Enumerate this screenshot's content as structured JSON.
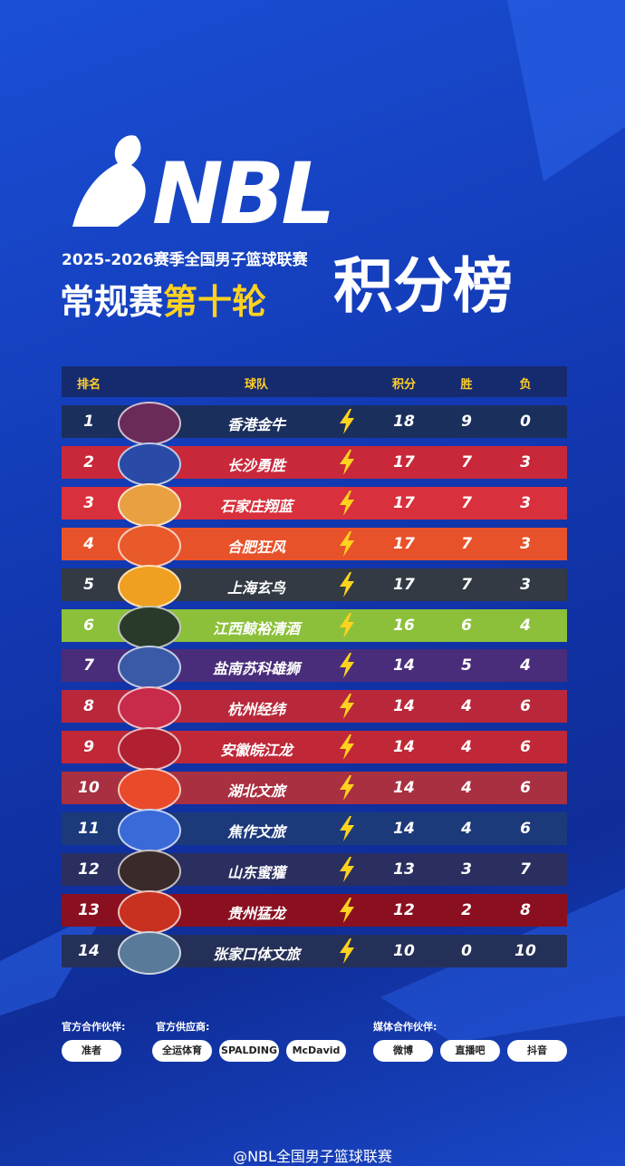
{
  "header": {
    "logo": "NBL",
    "season": "2025-2026赛季全国男子篮球联赛",
    "stage": "常规赛",
    "round": "第十轮",
    "title": "积分榜"
  },
  "table": {
    "columns": [
      "排名",
      "球队",
      "积分",
      "胜",
      "负"
    ],
    "rows": [
      [
        1,
        "香港金牛",
        18,
        9,
        0
      ],
      [
        2,
        "长沙勇胜",
        17,
        7,
        3
      ],
      [
        3,
        "石家庄翔蓝",
        17,
        7,
        3
      ],
      [
        4,
        "合肥狂风",
        17,
        7,
        3
      ],
      [
        5,
        "上海玄鸟",
        17,
        7,
        3
      ],
      [
        6,
        "江西鲸裕清酒",
        16,
        6,
        4
      ],
      [
        7,
        "盐南苏科雄狮",
        14,
        5,
        4
      ],
      [
        8,
        "杭州经纬",
        14,
        4,
        6
      ],
      [
        9,
        "安徽皖江龙",
        14,
        4,
        6
      ],
      [
        10,
        "湖北文旅",
        14,
        4,
        6
      ],
      [
        11,
        "焦作文旅",
        14,
        4,
        6
      ],
      [
        12,
        "山东蜜獾",
        13,
        3,
        7
      ],
      [
        13,
        "贵州猛龙",
        12,
        2,
        8
      ],
      [
        14,
        "张家口体文旅",
        10,
        0,
        10
      ]
    ]
  },
  "sponsors": {
    "groups": [
      {
        "label": "官方合作伙伴:",
        "logos": [
          "准者"
        ]
      },
      {
        "label": "官方供应商:",
        "logos": [
          "全运体育",
          "SPALDING",
          "McDavid"
        ]
      },
      {
        "label": "媒体合作伙伴:",
        "logos": [
          "微博",
          "直播吧",
          "抖音"
        ]
      }
    ]
  },
  "watermark": "@NBL全国男子篮球联赛"
}
